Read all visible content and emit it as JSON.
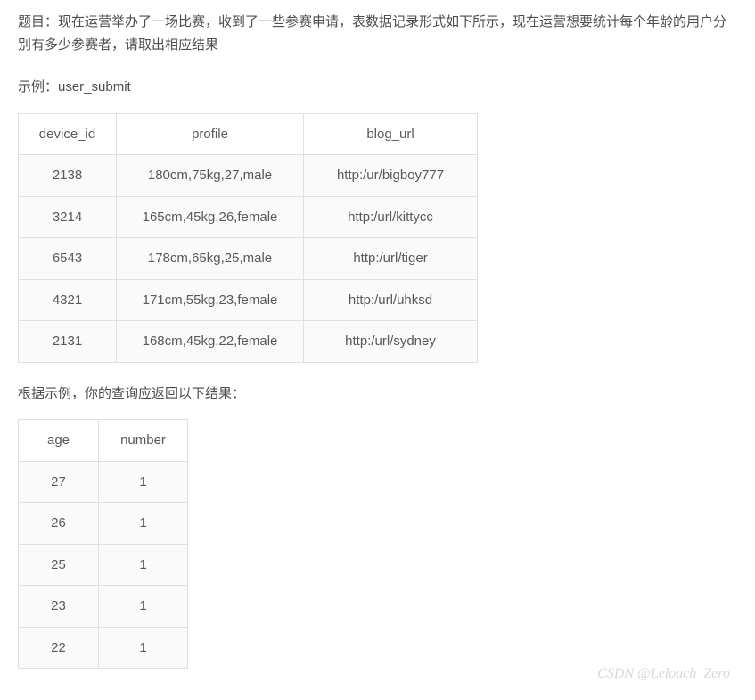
{
  "question": "题目：现在运营举办了一场比赛，收到了一些参赛申请，表数据记录形式如下所示，现在运营想要统计每个年龄的用户分别有多少参赛者，请取出相应结果",
  "example_label": "示例：user_submit",
  "table1": {
    "columns": [
      "device_id",
      "profile",
      "blog_url"
    ],
    "rows": [
      [
        "2138",
        "180cm,75kg,27,male",
        "http:/ur/bigboy777"
      ],
      [
        "3214",
        "165cm,45kg,26,female",
        "http:/url/kittycc"
      ],
      [
        "6543",
        "178cm,65kg,25,male",
        "http:/url/tiger"
      ],
      [
        "4321",
        "171cm,55kg,23,female",
        "http:/url/uhksd"
      ],
      [
        "2131",
        "168cm,45kg,22,female",
        "http:/url/sydney"
      ]
    ],
    "column_widths": [
      "110px",
      "210px",
      "195px"
    ]
  },
  "result_label": "根据示例，你的查询应返回以下结果：",
  "table2": {
    "columns": [
      "age",
      "number"
    ],
    "rows": [
      [
        "27",
        "1"
      ],
      [
        "26",
        "1"
      ],
      [
        "25",
        "1"
      ],
      [
        "23",
        "1"
      ],
      [
        "22",
        "1"
      ]
    ],
    "column_widths": [
      "90px",
      "100px"
    ]
  },
  "watermark": "CSDN @Lelouch_Zero",
  "styles": {
    "text_color": "#4d4d4d",
    "cell_text_color": "#595959",
    "border_color": "#e0e0e0",
    "row_background": "#fafafa",
    "header_background": "#ffffff",
    "background_color": "#ffffff",
    "watermark_color": "#d8d8d8",
    "font_size": 15,
    "watermark_font_size": 16
  }
}
